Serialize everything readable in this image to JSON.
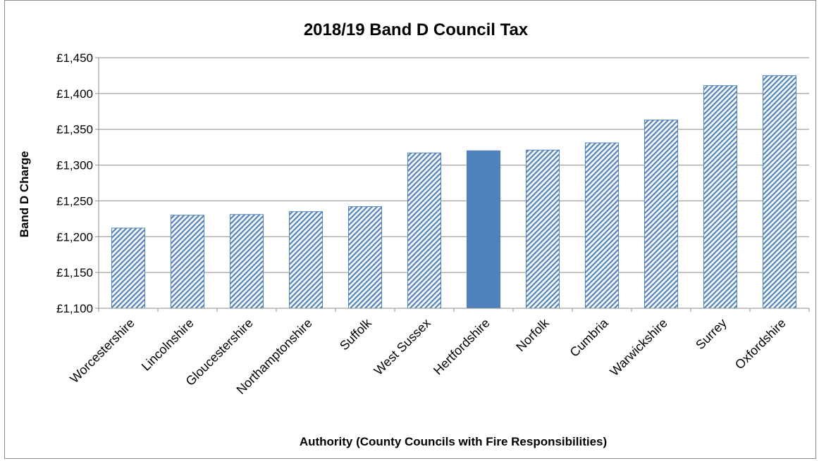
{
  "chart_data": {
    "type": "bar",
    "title": "2018/19 Band D Council Tax",
    "xlabel": "Authority (County Councils with Fire Responsibilities)",
    "ylabel": "Band D Charge",
    "ylim": [
      1100,
      1450
    ],
    "yticks": [
      1100,
      1150,
      1200,
      1250,
      1300,
      1350,
      1400,
      1450
    ],
    "ytick_labels": [
      "£1,100",
      "£1,150",
      "£1,200",
      "£1,250",
      "£1,300",
      "£1,350",
      "£1,400",
      "£1,450"
    ],
    "grid": true,
    "categories": [
      "Worcestershire",
      "Lincolnshire",
      "Gloucestershire",
      "Northamptonshire",
      "Suffolk",
      "West Sussex",
      "Hertfordshire",
      "Norfolk",
      "Cumbria",
      "Warwickshire",
      "Surrey",
      "Oxfordshire"
    ],
    "values": [
      1212,
      1230,
      1231,
      1235,
      1242,
      1317,
      1320,
      1321,
      1331,
      1363,
      1411,
      1425
    ],
    "highlight_category": "Hertfordshire",
    "colors": {
      "bar": "#4f81bd",
      "hatch_bg": "#ffffff",
      "grid": "#8c8c8c",
      "axis": "#8c8c8c"
    }
  }
}
